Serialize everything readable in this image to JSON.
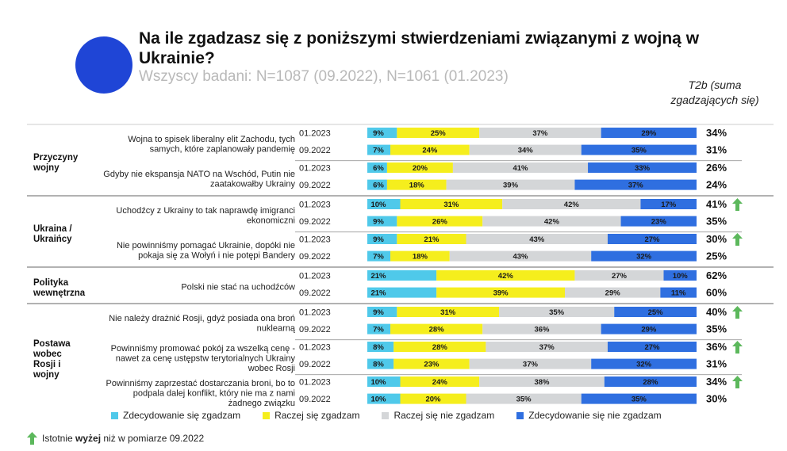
{
  "header": {
    "title": "Na ile zgadzasz się z poniższymi stwierdzeniami związanymi z wojną w Ukrainie?",
    "subtitle": "Wszyscy badani: N=1087 (09.2022), N=1061 (01.2023)",
    "t2b_label": "T2b (suma zgadzających się)"
  },
  "colors": {
    "strongly_agree": "#4fc9ea",
    "rather_agree": "#f5ee1d",
    "rather_disagree": "#d4d6d8",
    "strongly_disagree": "#2f6fe0",
    "up_arrow": "#5cb85c"
  },
  "chart_data": {
    "type": "bar",
    "orientation": "horizontal",
    "stacked": true,
    "title": "Na ile zgadzasz się z poniższymi stwierdzeniami związanymi z wojną w Ukrainie?",
    "series_names": [
      "Zdecydowanie się zgadzam",
      "Raczej się zgadzam",
      "Raczej się nie zgadzam",
      "Zdecydowanie się nie zgadzam"
    ],
    "groups": [
      {
        "name": "Przyczyny wojny",
        "statements": [
          {
            "text": "Wojna to spisek liberalny elit Zachodu, tych samych, które zaplanowały pandemię",
            "rows": [
              {
                "period": "01.2023",
                "values": [
                  9,
                  25,
                  37,
                  29
                ],
                "t2b": "34%",
                "up": false
              },
              {
                "period": "09.2022",
                "values": [
                  7,
                  24,
                  34,
                  35
                ],
                "t2b": "31%",
                "up": false
              }
            ]
          },
          {
            "text": "Gdyby nie ekspansja NATO na Wschód, Putin nie zaatakowałby Ukrainy",
            "rows": [
              {
                "period": "01.2023",
                "values": [
                  6,
                  20,
                  41,
                  33
                ],
                "t2b": "26%",
                "up": false
              },
              {
                "period": "09.2022",
                "values": [
                  6,
                  18,
                  39,
                  37
                ],
                "t2b": "24%",
                "up": false
              }
            ]
          }
        ]
      },
      {
        "name": "Ukraina / Ukraińcy",
        "statements": [
          {
            "text": "Uchodźcy z Ukrainy to tak naprawdę imigranci ekonomiczni",
            "rows": [
              {
                "period": "01.2023",
                "values": [
                  10,
                  31,
                  42,
                  17
                ],
                "t2b": "41%",
                "up": true
              },
              {
                "period": "09.2022",
                "values": [
                  9,
                  26,
                  42,
                  23
                ],
                "t2b": "35%",
                "up": false
              }
            ]
          },
          {
            "text": "Nie powinniśmy pomagać Ukrainie, dopóki nie pokaja się za Wołyń i nie potępi Bandery",
            "rows": [
              {
                "period": "01.2023",
                "values": [
                  9,
                  21,
                  43,
                  27
                ],
                "t2b": "30%",
                "up": true
              },
              {
                "period": "09.2022",
                "values": [
                  7,
                  18,
                  43,
                  32
                ],
                "t2b": "25%",
                "up": false
              }
            ]
          }
        ]
      },
      {
        "name": "Polityka wewnętrzna",
        "statements": [
          {
            "text": "Polski nie stać na uchodźców",
            "rows": [
              {
                "period": "01.2023",
                "values": [
                  21,
                  42,
                  27,
                  10
                ],
                "t2b": "62%",
                "up": false
              },
              {
                "period": "09.2022",
                "values": [
                  21,
                  39,
                  29,
                  11
                ],
                "t2b": "60%",
                "up": false
              }
            ]
          }
        ]
      },
      {
        "name": "Postawa wobec Rosji i wojny",
        "statements": [
          {
            "text": "Nie należy drażnić Rosji, gdyż posiada ona broń nuklearną",
            "rows": [
              {
                "period": "01.2023",
                "values": [
                  9,
                  31,
                  35,
                  25
                ],
                "t2b": "40%",
                "up": true
              },
              {
                "period": "09.2022",
                "values": [
                  7,
                  28,
                  36,
                  29
                ],
                "t2b": "35%",
                "up": false
              }
            ]
          },
          {
            "text": "Powinniśmy promować pokój za wszelką cenę - nawet za cenę ustępstw terytorialnych Ukrainy wobec Rosji",
            "rows": [
              {
                "period": "01.2023",
                "values": [
                  8,
                  28,
                  37,
                  27
                ],
                "t2b": "36%",
                "up": true
              },
              {
                "period": "09.2022",
                "values": [
                  8,
                  23,
                  37,
                  32
                ],
                "t2b": "31%",
                "up": false
              }
            ]
          },
          {
            "text": "Powinniśmy zaprzestać dostarczania broni, bo to podpala dalej konflikt, który nie ma z nami żadnego związku",
            "rows": [
              {
                "period": "01.2023",
                "values": [
                  10,
                  24,
                  38,
                  28
                ],
                "t2b": "34%",
                "up": true
              },
              {
                "period": "09.2022",
                "values": [
                  10,
                  20,
                  35,
                  35
                ],
                "t2b": "30%",
                "up": false
              }
            ]
          }
        ]
      }
    ]
  },
  "legend": [
    {
      "label": "Zdecydowanie się zgadzam",
      "color": "#4fc9ea"
    },
    {
      "label": "Raczej się zgadzam",
      "color": "#f5ee1d"
    },
    {
      "label": "Raczej się nie zgadzam",
      "color": "#d4d6d8"
    },
    {
      "label": "Zdecydowanie się nie zgadzam",
      "color": "#2f6fe0"
    }
  ],
  "footnote": {
    "prefix": "Istotnie ",
    "bold": "wyżej",
    "suffix": " niż w pomiarze 09.2022"
  }
}
